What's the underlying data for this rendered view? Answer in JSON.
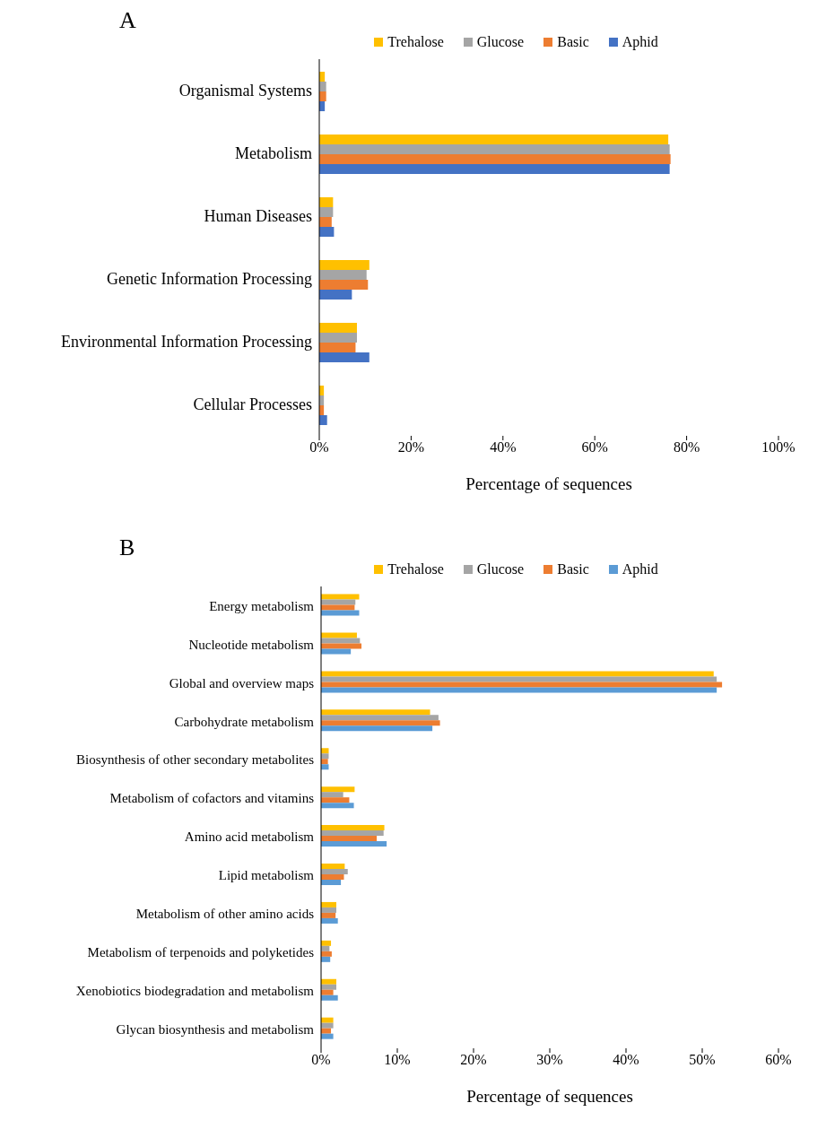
{
  "chart_data": [
    {
      "type": "bar",
      "orientation": "horizontal",
      "title": "A",
      "xlabel": "Percentage of sequences",
      "categories": [
        "Organismal Systems",
        "Metabolism",
        "Human Diseases",
        "Genetic Information Processing",
        "Environmental Information Processing",
        "Cellular Processes"
      ],
      "series": [
        {
          "name": "Trehalose",
          "color": "#ffc000",
          "values": [
            1.2,
            76.0,
            3.0,
            10.9,
            8.2,
            1.0
          ]
        },
        {
          "name": "Glucose",
          "color": "#a5a5a5",
          "values": [
            1.5,
            76.3,
            3.0,
            10.3,
            8.2,
            1.0
          ]
        },
        {
          "name": "Basic",
          "color": "#ed7d31",
          "values": [
            1.5,
            76.5,
            2.7,
            10.6,
            7.9,
            1.0
          ]
        },
        {
          "name": "Aphid",
          "color": "#4472c4",
          "values": [
            1.2,
            76.3,
            3.2,
            7.1,
            10.9,
            1.7
          ]
        }
      ],
      "xlim": [
        0,
        100
      ],
      "xticks": [
        {
          "value": 0,
          "label": "0%"
        },
        {
          "value": 20,
          "label": "20%"
        },
        {
          "value": 40,
          "label": "40%"
        },
        {
          "value": 60,
          "label": "60%"
        },
        {
          "value": 80,
          "label": "80%"
        },
        {
          "value": 100,
          "label": "100%"
        }
      ],
      "grid": false,
      "legend": "top"
    },
    {
      "type": "bar",
      "orientation": "horizontal",
      "title": "B",
      "xlabel": "Percentage of sequences",
      "categories": [
        "Energy metabolism",
        "Nucleotide metabolism",
        "Global and overview maps",
        "Carbohydrate metabolism",
        "Biosynthesis of other secondary metabolites",
        "Metabolism of cofactors and vitamins",
        "Amino acid metabolism",
        "Lipid metabolism",
        "Metabolism of other amino acids",
        "Metabolism of terpenoids and polyketides",
        "Xenobiotics biodegradation and metabolism",
        "Glycan biosynthesis and metabolism"
      ],
      "series": [
        {
          "name": "Trehalose",
          "color": "#ffc000",
          "values": [
            5.0,
            4.7,
            51.5,
            14.3,
            1.0,
            4.4,
            8.3,
            3.1,
            2.0,
            1.3,
            2.0,
            1.6
          ]
        },
        {
          "name": "Glucose",
          "color": "#a5a5a5",
          "values": [
            4.5,
            5.1,
            51.9,
            15.4,
            1.0,
            2.9,
            8.2,
            3.5,
            2.0,
            1.1,
            2.0,
            1.6
          ]
        },
        {
          "name": "Basic",
          "color": "#ed7d31",
          "values": [
            4.4,
            5.3,
            52.6,
            15.6,
            0.9,
            3.7,
            7.3,
            3.0,
            1.9,
            1.4,
            1.6,
            1.3
          ]
        },
        {
          "name": "Aphid",
          "color": "#5b9bd5",
          "values": [
            5.0,
            3.9,
            51.9,
            14.6,
            1.0,
            4.3,
            8.6,
            2.6,
            2.2,
            1.2,
            2.2,
            1.6
          ]
        }
      ],
      "xlim": [
        0,
        60
      ],
      "xticks": [
        {
          "value": 0,
          "label": "0%"
        },
        {
          "value": 10,
          "label": "10%"
        },
        {
          "value": 20,
          "label": "20%"
        },
        {
          "value": 30,
          "label": "30%"
        },
        {
          "value": 40,
          "label": "40%"
        },
        {
          "value": 50,
          "label": "50%"
        },
        {
          "value": 60,
          "label": "60%"
        }
      ],
      "grid": false,
      "legend": "top"
    }
  ]
}
